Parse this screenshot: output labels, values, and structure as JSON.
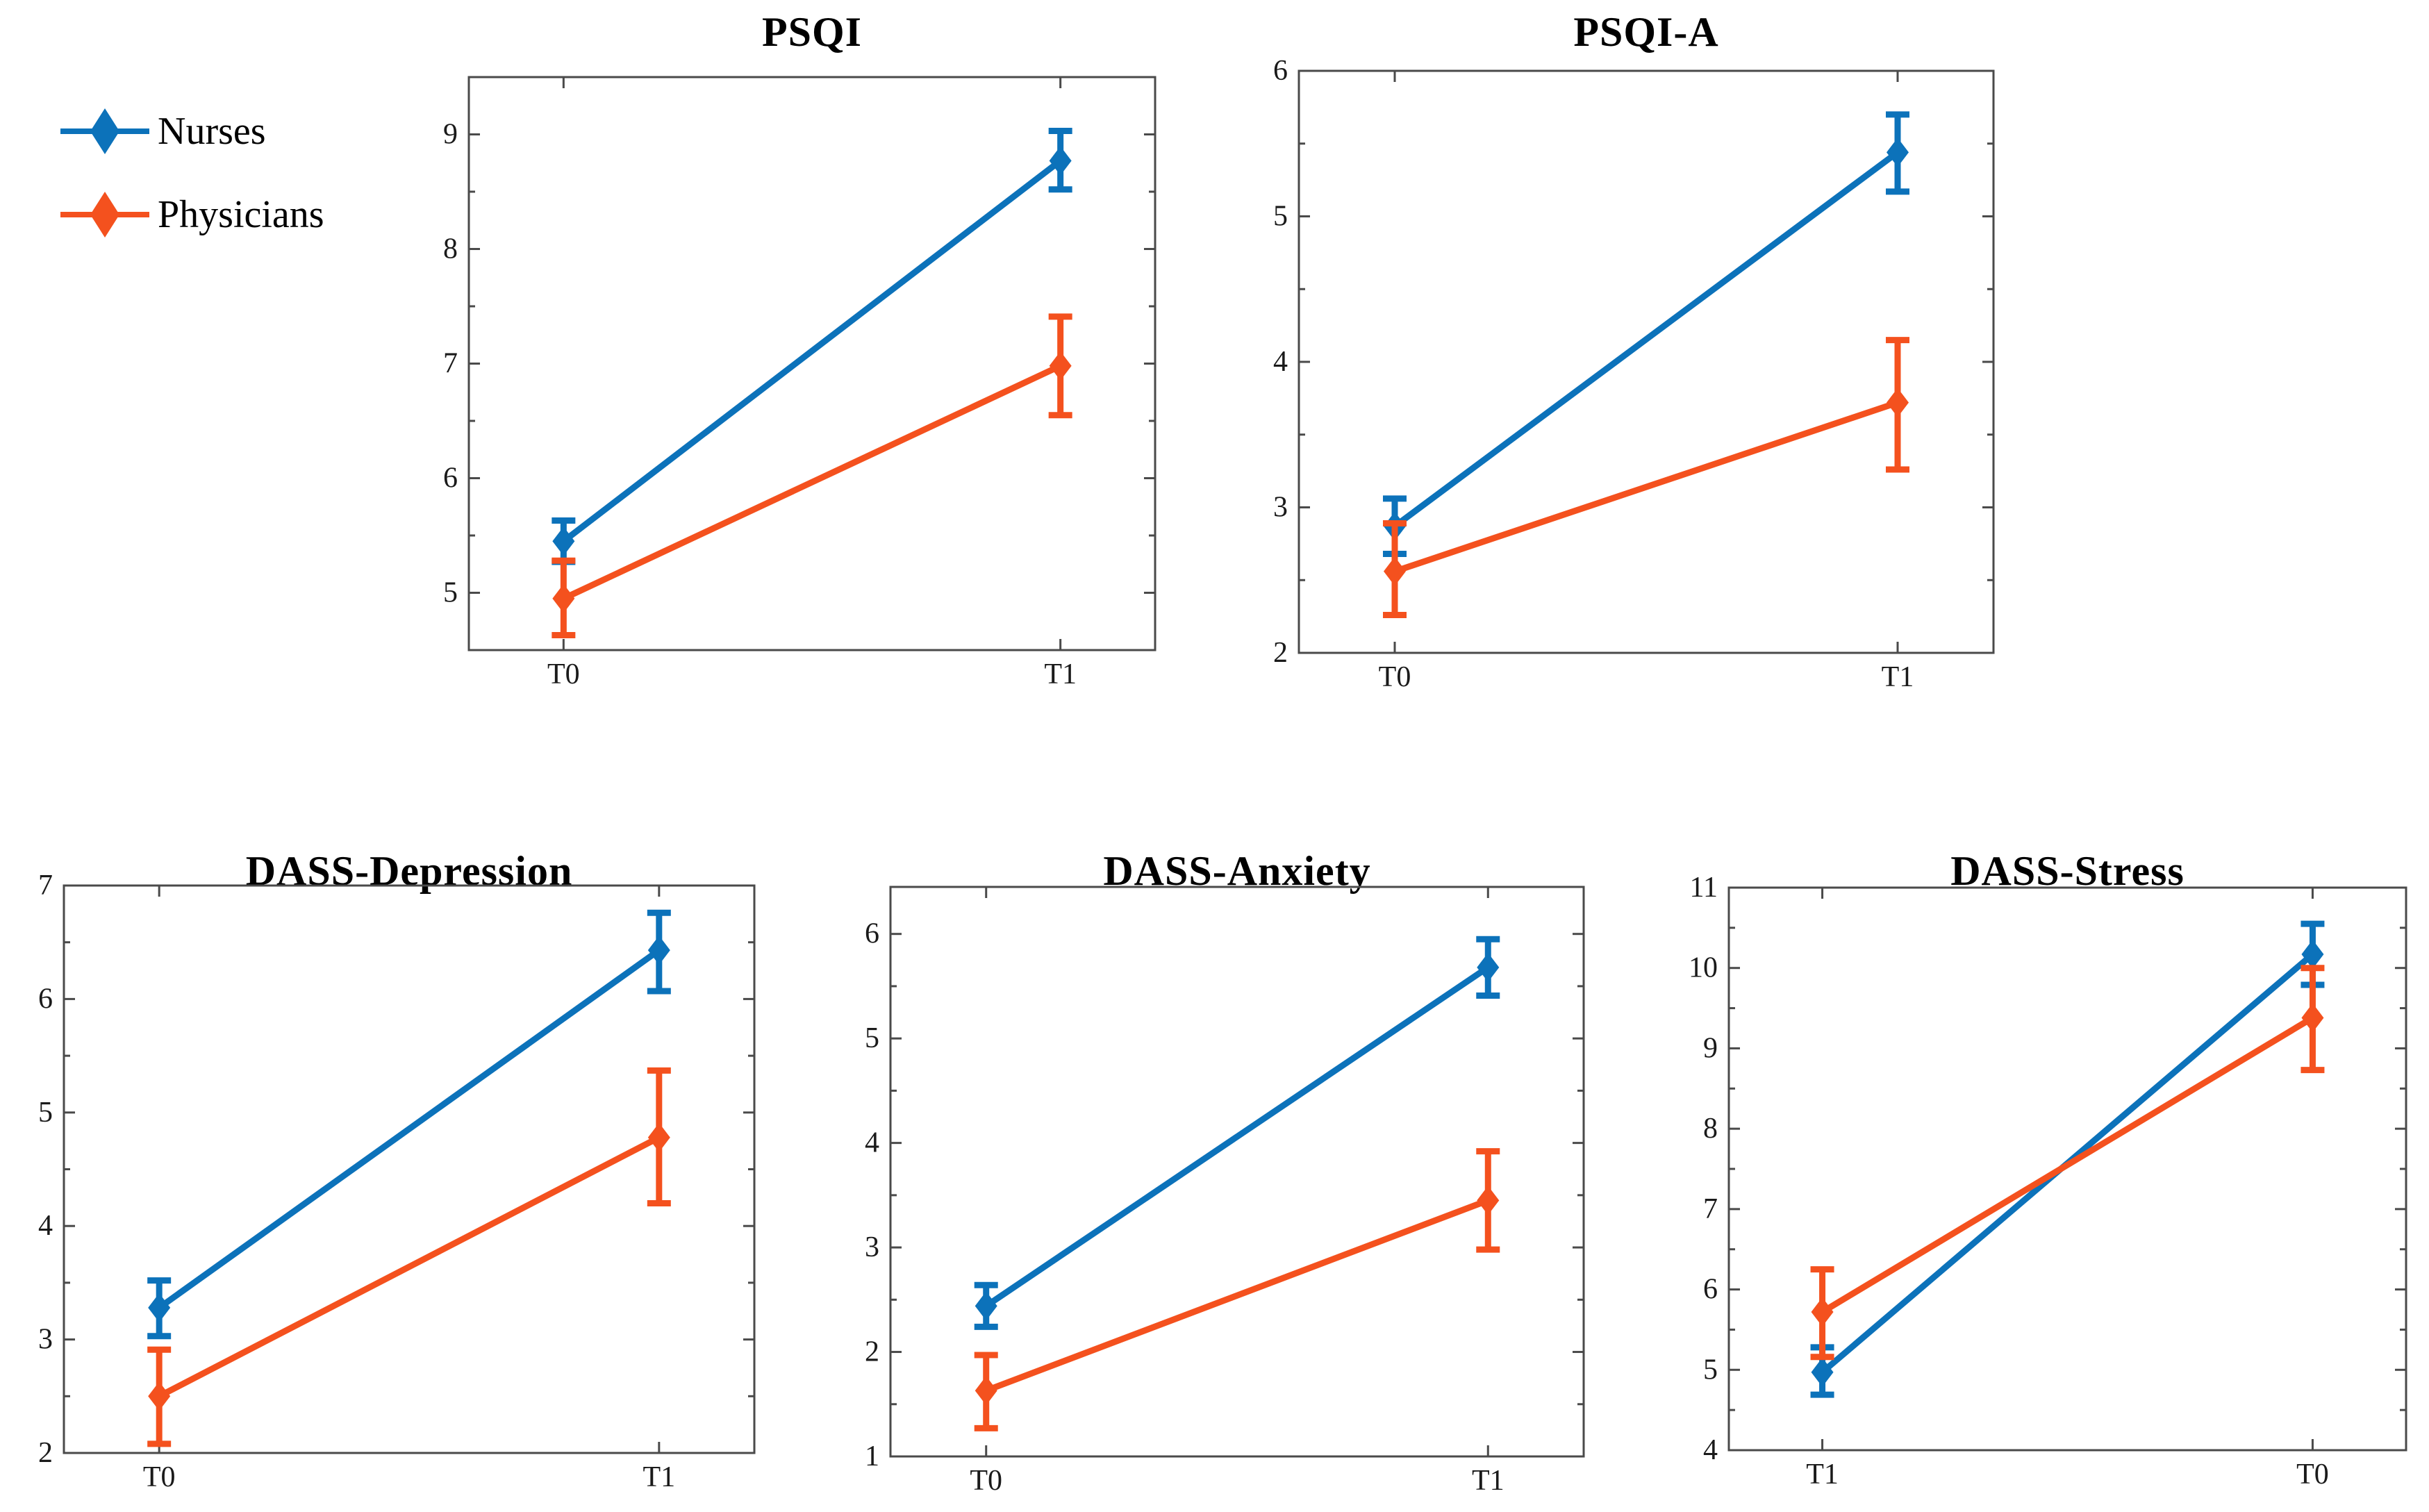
{
  "figure": {
    "background": "#FFFFFF",
    "axis_color": "#4a4a4a",
    "tick_label_color": "#1a1a1a",
    "legend": {
      "position": "outside-top-left",
      "items": [
        {
          "label": "Nurses",
          "color": "#0C72BA",
          "marker": "diamond"
        },
        {
          "label": "Physicians",
          "color": "#F4511E",
          "marker": "diamond"
        }
      ]
    }
  },
  "chart_data": [
    {
      "type": "line",
      "title": "PSQI",
      "categories": [
        "T0",
        "T1"
      ],
      "xlabel": "",
      "ylabel": "",
      "ylim": [
        4.5,
        9.5
      ],
      "yticks": [
        5,
        6,
        7,
        8,
        9
      ],
      "yminorticks": [
        5.5,
        6.5,
        7.5,
        8.5
      ],
      "grid": false,
      "marker": "diamond",
      "error_bars": true,
      "series": [
        {
          "name": "Nurses",
          "color": "#0C72BA",
          "values": [
            5.45,
            8.77
          ],
          "err_low": [
            5.27,
            8.52
          ],
          "err_high": [
            5.63,
            9.03
          ]
        },
        {
          "name": "Physicians",
          "color": "#F4511E",
          "values": [
            4.95,
            6.98
          ],
          "err_low": [
            4.63,
            6.55
          ],
          "err_high": [
            5.28,
            7.41
          ]
        }
      ]
    },
    {
      "type": "line",
      "title": "PSQI-A",
      "categories": [
        "T0",
        "T1"
      ],
      "xlabel": "",
      "ylabel": "",
      "ylim": [
        2,
        6
      ],
      "yticks": [
        2,
        3,
        4,
        5,
        6
      ],
      "yminorticks": [
        2.5,
        3.5,
        4.5,
        5.5
      ],
      "grid": false,
      "marker": "diamond",
      "error_bars": true,
      "series": [
        {
          "name": "Nurses",
          "color": "#0C72BA",
          "values": [
            2.87,
            5.44
          ],
          "err_low": [
            2.68,
            5.17
          ],
          "err_high": [
            3.06,
            5.7
          ]
        },
        {
          "name": "Physicians",
          "color": "#F4511E",
          "values": [
            2.56,
            3.72
          ],
          "err_low": [
            2.26,
            3.26
          ],
          "err_high": [
            2.89,
            4.15
          ]
        }
      ]
    },
    {
      "type": "line",
      "title": "DASS-Depression",
      "categories": [
        "T0",
        "T1"
      ],
      "xlabel": "",
      "ylabel": "",
      "ylim": [
        2,
        7
      ],
      "yticks": [
        2,
        3,
        4,
        5,
        6,
        7
      ],
      "yminorticks": [
        2.5,
        3.5,
        4.5,
        5.5,
        6.5
      ],
      "grid": false,
      "marker": "diamond",
      "error_bars": true,
      "series": [
        {
          "name": "Nurses",
          "color": "#0C72BA",
          "values": [
            3.28,
            6.43
          ],
          "err_low": [
            3.03,
            6.07
          ],
          "err_high": [
            3.52,
            6.76
          ]
        },
        {
          "name": "Physicians",
          "color": "#F4511E",
          "values": [
            2.5,
            4.78
          ],
          "err_low": [
            2.08,
            4.2
          ],
          "err_high": [
            2.91,
            5.37
          ]
        }
      ]
    },
    {
      "type": "line",
      "title": "DASS-Anxiety",
      "categories": [
        "T0",
        "T1"
      ],
      "xlabel": "",
      "ylabel": "",
      "ylim": [
        1,
        6.45
      ],
      "yticks": [
        1,
        2,
        3,
        4,
        5,
        6
      ],
      "yminorticks": [
        1.5,
        2.5,
        3.5,
        4.5,
        5.5
      ],
      "grid": false,
      "marker": "diamond",
      "error_bars": true,
      "series": [
        {
          "name": "Nurses",
          "color": "#0C72BA",
          "values": [
            2.44,
            5.68
          ],
          "err_low": [
            2.24,
            5.41
          ],
          "err_high": [
            2.64,
            5.95
          ]
        },
        {
          "name": "Physicians",
          "color": "#F4511E",
          "values": [
            1.63,
            3.45
          ],
          "err_low": [
            1.27,
            2.98
          ],
          "err_high": [
            1.97,
            3.92
          ]
        }
      ]
    },
    {
      "type": "line",
      "title": "DASS-Stress",
      "categories": [
        "T1",
        "T0"
      ],
      "xlabel": "",
      "ylabel": "",
      "ylim": [
        4,
        11
      ],
      "yticks": [
        4,
        5,
        6,
        7,
        8,
        9,
        10,
        11
      ],
      "yminorticks": [
        4.5,
        5.5,
        6.5,
        7.5,
        8.5,
        9.5,
        10.5
      ],
      "grid": false,
      "marker": "diamond",
      "error_bars": true,
      "series": [
        {
          "name": "Nurses",
          "color": "#0C72BA",
          "values": [
            4.97,
            10.17
          ],
          "err_low": [
            4.69,
            9.79
          ],
          "err_high": [
            5.28,
            10.55
          ]
        },
        {
          "name": "Physicians",
          "color": "#F4511E",
          "values": [
            5.72,
            9.38
          ],
          "err_low": [
            5.16,
            8.73
          ],
          "err_high": [
            6.25,
            10.0
          ]
        }
      ]
    }
  ]
}
